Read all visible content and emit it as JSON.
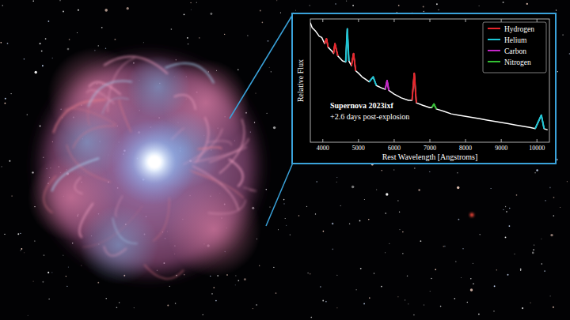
{
  "chart_data": {
    "type": "line",
    "x": [
      3650,
      3700,
      3800,
      3900,
      3970,
      4050,
      4102,
      4150,
      4250,
      4300,
      4340,
      4420,
      4550,
      4640,
      4686,
      4730,
      4800,
      4861,
      4920,
      5000,
      5100,
      5200,
      5300,
      5411,
      5500,
      5650,
      5750,
      5801,
      5850,
      6000,
      6200,
      6400,
      6500,
      6563,
      6620,
      6800,
      7000,
      7050,
      7115,
      7180,
      7400,
      7600,
      7800,
      8000,
      8200,
      8400,
      8600,
      8800,
      9000,
      9200,
      9400,
      9600,
      9800,
      9950,
      10124,
      10200,
      10300
    ],
    "values": [
      0.97,
      0.93,
      0.9,
      0.86,
      0.85,
      0.8,
      0.84,
      0.77,
      0.74,
      0.72,
      0.8,
      0.7,
      0.66,
      0.65,
      0.92,
      0.66,
      0.62,
      0.72,
      0.58,
      0.56,
      0.53,
      0.51,
      0.49,
      0.53,
      0.46,
      0.44,
      0.43,
      0.5,
      0.42,
      0.39,
      0.36,
      0.34,
      0.34,
      0.56,
      0.32,
      0.3,
      0.28,
      0.28,
      0.31,
      0.27,
      0.25,
      0.23,
      0.22,
      0.21,
      0.2,
      0.19,
      0.18,
      0.17,
      0.16,
      0.15,
      0.14,
      0.13,
      0.12,
      0.11,
      0.22,
      0.11,
      0.1
    ],
    "color": "#ffffff",
    "series": [
      {
        "name": "Hydrogen",
        "color": "#e8252b",
        "values": [
          null,
          null,
          null,
          null,
          null,
          0.8,
          0.84,
          0.77,
          null,
          0.72,
          0.8,
          0.7,
          null,
          null,
          null,
          null,
          0.62,
          0.72,
          0.58,
          null,
          null,
          null,
          null,
          null,
          null,
          null,
          null,
          null,
          null,
          null,
          null,
          null,
          0.34,
          0.56,
          0.32,
          null,
          null,
          null,
          null,
          null,
          null,
          null,
          null,
          null,
          null,
          null,
          null,
          null,
          null,
          null,
          null,
          null,
          null,
          null,
          null,
          null,
          null
        ]
      },
      {
        "name": "Helium",
        "color": "#1cc6d6",
        "values": [
          null,
          null,
          null,
          null,
          null,
          null,
          null,
          null,
          null,
          null,
          null,
          null,
          null,
          0.65,
          0.92,
          0.66,
          null,
          null,
          null,
          null,
          null,
          null,
          0.49,
          0.53,
          0.46,
          null,
          null,
          null,
          null,
          null,
          null,
          null,
          null,
          null,
          null,
          null,
          null,
          null,
          null,
          null,
          null,
          null,
          null,
          null,
          null,
          null,
          null,
          null,
          null,
          null,
          null,
          null,
          null,
          0.11,
          0.22,
          0.11,
          null
        ]
      },
      {
        "name": "Carbon",
        "color": "#c625c9",
        "values": [
          null,
          null,
          null,
          null,
          null,
          null,
          null,
          null,
          null,
          null,
          null,
          null,
          null,
          null,
          null,
          null,
          null,
          null,
          null,
          null,
          null,
          null,
          null,
          null,
          null,
          null,
          0.43,
          0.5,
          0.42,
          null,
          null,
          null,
          null,
          null,
          null,
          null,
          null,
          null,
          null,
          null,
          null,
          null,
          null,
          null,
          null,
          null,
          null,
          null,
          null,
          null,
          null,
          null,
          null,
          null,
          null,
          null,
          null
        ]
      },
      {
        "name": "Nitrogen",
        "color": "#33c133",
        "values": [
          null,
          null,
          null,
          null,
          null,
          null,
          null,
          null,
          null,
          null,
          null,
          null,
          null,
          null,
          null,
          null,
          null,
          null,
          null,
          null,
          null,
          null,
          null,
          null,
          null,
          null,
          null,
          null,
          null,
          null,
          null,
          null,
          null,
          null,
          null,
          null,
          null,
          0.28,
          0.31,
          0.27,
          null,
          null,
          null,
          null,
          null,
          null,
          null,
          null,
          null,
          null,
          null,
          null,
          null,
          null,
          null,
          null,
          null
        ]
      }
    ],
    "xlim": [
      3650,
      10350
    ],
    "ylim": [
      0,
      1
    ],
    "xticks": [
      4000,
      5000,
      6000,
      7000,
      8000,
      9000,
      10000
    ],
    "xlabel": "Rest Wavelength [Angstroms]",
    "ylabel": "Relative Flux",
    "tick_labels": "x",
    "legend": "upper right",
    "annotations": [
      "Supernova 2023ixf",
      "+2.6 days post-explosion"
    ]
  }
}
